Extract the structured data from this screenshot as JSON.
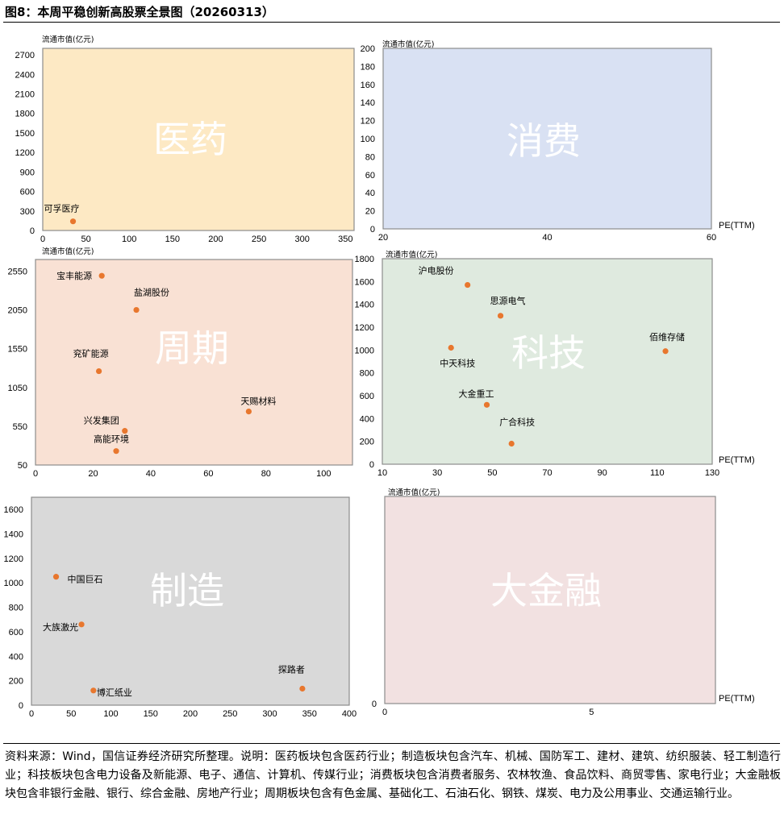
{
  "figure_title": "图8：本周平稳创新高股票全景图（20260313）",
  "footnote": "资料来源：Wind，国信证券经济研究所整理。说明：医药板块包含医药行业；制造板块包含汽车、机械、国防军工、建材、建筑、纺织服装、轻工制造行业；科技板块包含电力设备及新能源、电子、通信、计算机、传媒行业；消费板块包含消费者服务、农林牧渔、食品饮料、商贸零售、家电行业；大金融板块包含非银行金融、银行、综合金融、房地产行业；周期板块包含有色金属、基础化工、石油石化、钢铁、煤炭、电力及公用事业、交通运输行业。",
  "chart_data": [
    {
      "type": "scatter",
      "panel": "医药",
      "ylabel": "流通市值(亿元)",
      "xlabel": "",
      "xlim": [
        0,
        360
      ],
      "xticks": [
        0,
        50,
        100,
        150,
        200,
        250,
        300,
        350
      ],
      "ylim": [
        0,
        2800
      ],
      "yticks": [
        0,
        300,
        600,
        900,
        1200,
        1500,
        1800,
        2100,
        2400,
        2700
      ],
      "background": "#FDE9C4",
      "marker_color": "#E8772E",
      "points": [
        {
          "label": "可孚医疗",
          "x": 35,
          "y": 140
        }
      ]
    },
    {
      "type": "scatter",
      "panel": "消费",
      "ylabel": "流通市值(亿元)",
      "xlabel": "PE(TTM)",
      "xlim": [
        20,
        60
      ],
      "xticks": [
        20,
        40,
        60
      ],
      "ylim": [
        0,
        200
      ],
      "yticks": [
        0,
        20,
        40,
        60,
        80,
        100,
        120,
        140,
        160,
        180,
        200
      ],
      "background": "#D9E1F3",
      "marker_color": "#E8772E",
      "points": []
    },
    {
      "type": "scatter",
      "panel": "周期",
      "ylabel": "流通市值(亿元)",
      "xlabel": "",
      "xlim": [
        0,
        110
      ],
      "xticks": [
        0,
        20,
        40,
        60,
        80,
        100
      ],
      "ylim": [
        50,
        2700
      ],
      "yticks": [
        50,
        550,
        1050,
        1550,
        2050,
        2550
      ],
      "background": "#F9E1D4",
      "marker_color": "#E8772E",
      "points": [
        {
          "label": "宝丰能源",
          "x": 23,
          "y": 2490
        },
        {
          "label": "盐湖股份",
          "x": 35,
          "y": 2050
        },
        {
          "label": "兖矿能源",
          "x": 22,
          "y": 1260
        },
        {
          "label": "天赐材料",
          "x": 74,
          "y": 740
        },
        {
          "label": "兴发集团",
          "x": 31,
          "y": 490
        },
        {
          "label": "高能环境",
          "x": 28,
          "y": 230
        }
      ]
    },
    {
      "type": "scatter",
      "panel": "科技",
      "ylabel": "流通市值(亿元)",
      "xlabel": "PE(TTM)",
      "xlim": [
        10,
        130
      ],
      "xticks": [
        10,
        30,
        50,
        70,
        90,
        110,
        130
      ],
      "ylim": [
        0,
        1800
      ],
      "yticks": [
        0,
        200,
        400,
        600,
        800,
        1000,
        1200,
        1400,
        1600,
        1800
      ],
      "background": "#DFEADF",
      "marker_color": "#E8772E",
      "points": [
        {
          "label": "沪电股份",
          "x": 41,
          "y": 1570
        },
        {
          "label": "思源电气",
          "x": 53,
          "y": 1300
        },
        {
          "label": "佰维存储",
          "x": 113,
          "y": 990
        },
        {
          "label": "中天科技",
          "x": 35,
          "y": 1020
        },
        {
          "label": "大金重工",
          "x": 48,
          "y": 520
        },
        {
          "label": "广合科技",
          "x": 57,
          "y": 180
        }
      ]
    },
    {
      "type": "scatter",
      "panel": "制造",
      "ylabel": "",
      "xlabel": "",
      "xlim": [
        0,
        400
      ],
      "xticks": [
        0,
        50,
        100,
        150,
        200,
        250,
        300,
        350,
        400
      ],
      "ylim": [
        0,
        1700
      ],
      "yticks": [
        0,
        200,
        400,
        600,
        800,
        1000,
        1200,
        1400,
        1600
      ],
      "background": "#D9D9D9",
      "marker_color": "#E8772E",
      "points": [
        {
          "label": "中国巨石",
          "x": 31,
          "y": 1050
        },
        {
          "label": "大族激光",
          "x": 63,
          "y": 660
        },
        {
          "label": "博汇纸业",
          "x": 78,
          "y": 120
        },
        {
          "label": "探路者",
          "x": 341,
          "y": 135
        }
      ]
    },
    {
      "type": "scatter",
      "panel": "大金融",
      "ylabel": "流通市值(亿元)",
      "xlabel": "PE(TTM)",
      "xlim": [
        0,
        8
      ],
      "xticks": [
        0,
        5
      ],
      "ylim": [
        0,
        1
      ],
      "yticks": [
        0
      ],
      "background": "#F2E1E1",
      "marker_color": "#E8772E",
      "points": []
    }
  ]
}
